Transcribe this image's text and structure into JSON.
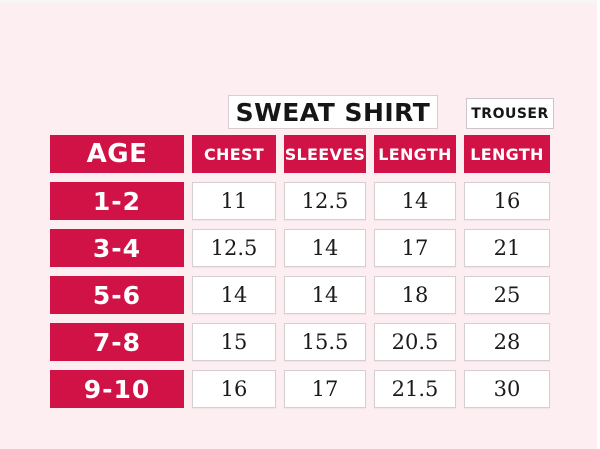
{
  "palette": {
    "background": "#fdeef2",
    "accent": "#d11247",
    "cell_background": "#ffffff",
    "cell_border": "#d5ced2",
    "header_text": "#ffffff",
    "value_text": "#1b1b1b"
  },
  "group_headers": {
    "sweat_shirt": "SWEAT SHIRT",
    "trouser": "TROUSER"
  },
  "chart_data": {
    "type": "table",
    "group_headers": [
      "SWEAT SHIRT",
      "TROUSER"
    ],
    "group_spans": {
      "SWEAT SHIRT": [
        "CHEST",
        "SLEEVES",
        "LENGTH"
      ],
      "TROUSER": [
        "LENGTH"
      ]
    },
    "columns": [
      "AGE",
      "CHEST",
      "SLEEVES",
      "LENGTH",
      "LENGTH"
    ],
    "rows": [
      [
        "1-2",
        "11",
        "12.5",
        "14",
        "16"
      ],
      [
        "3-4",
        "12.5",
        "14",
        "17",
        "21"
      ],
      [
        "5-6",
        "14",
        "14",
        "18",
        "25"
      ],
      [
        "7-8",
        "15",
        "15.5",
        "20.5",
        "28"
      ],
      [
        "9-10",
        "16",
        "17",
        "21.5",
        "30"
      ]
    ]
  }
}
